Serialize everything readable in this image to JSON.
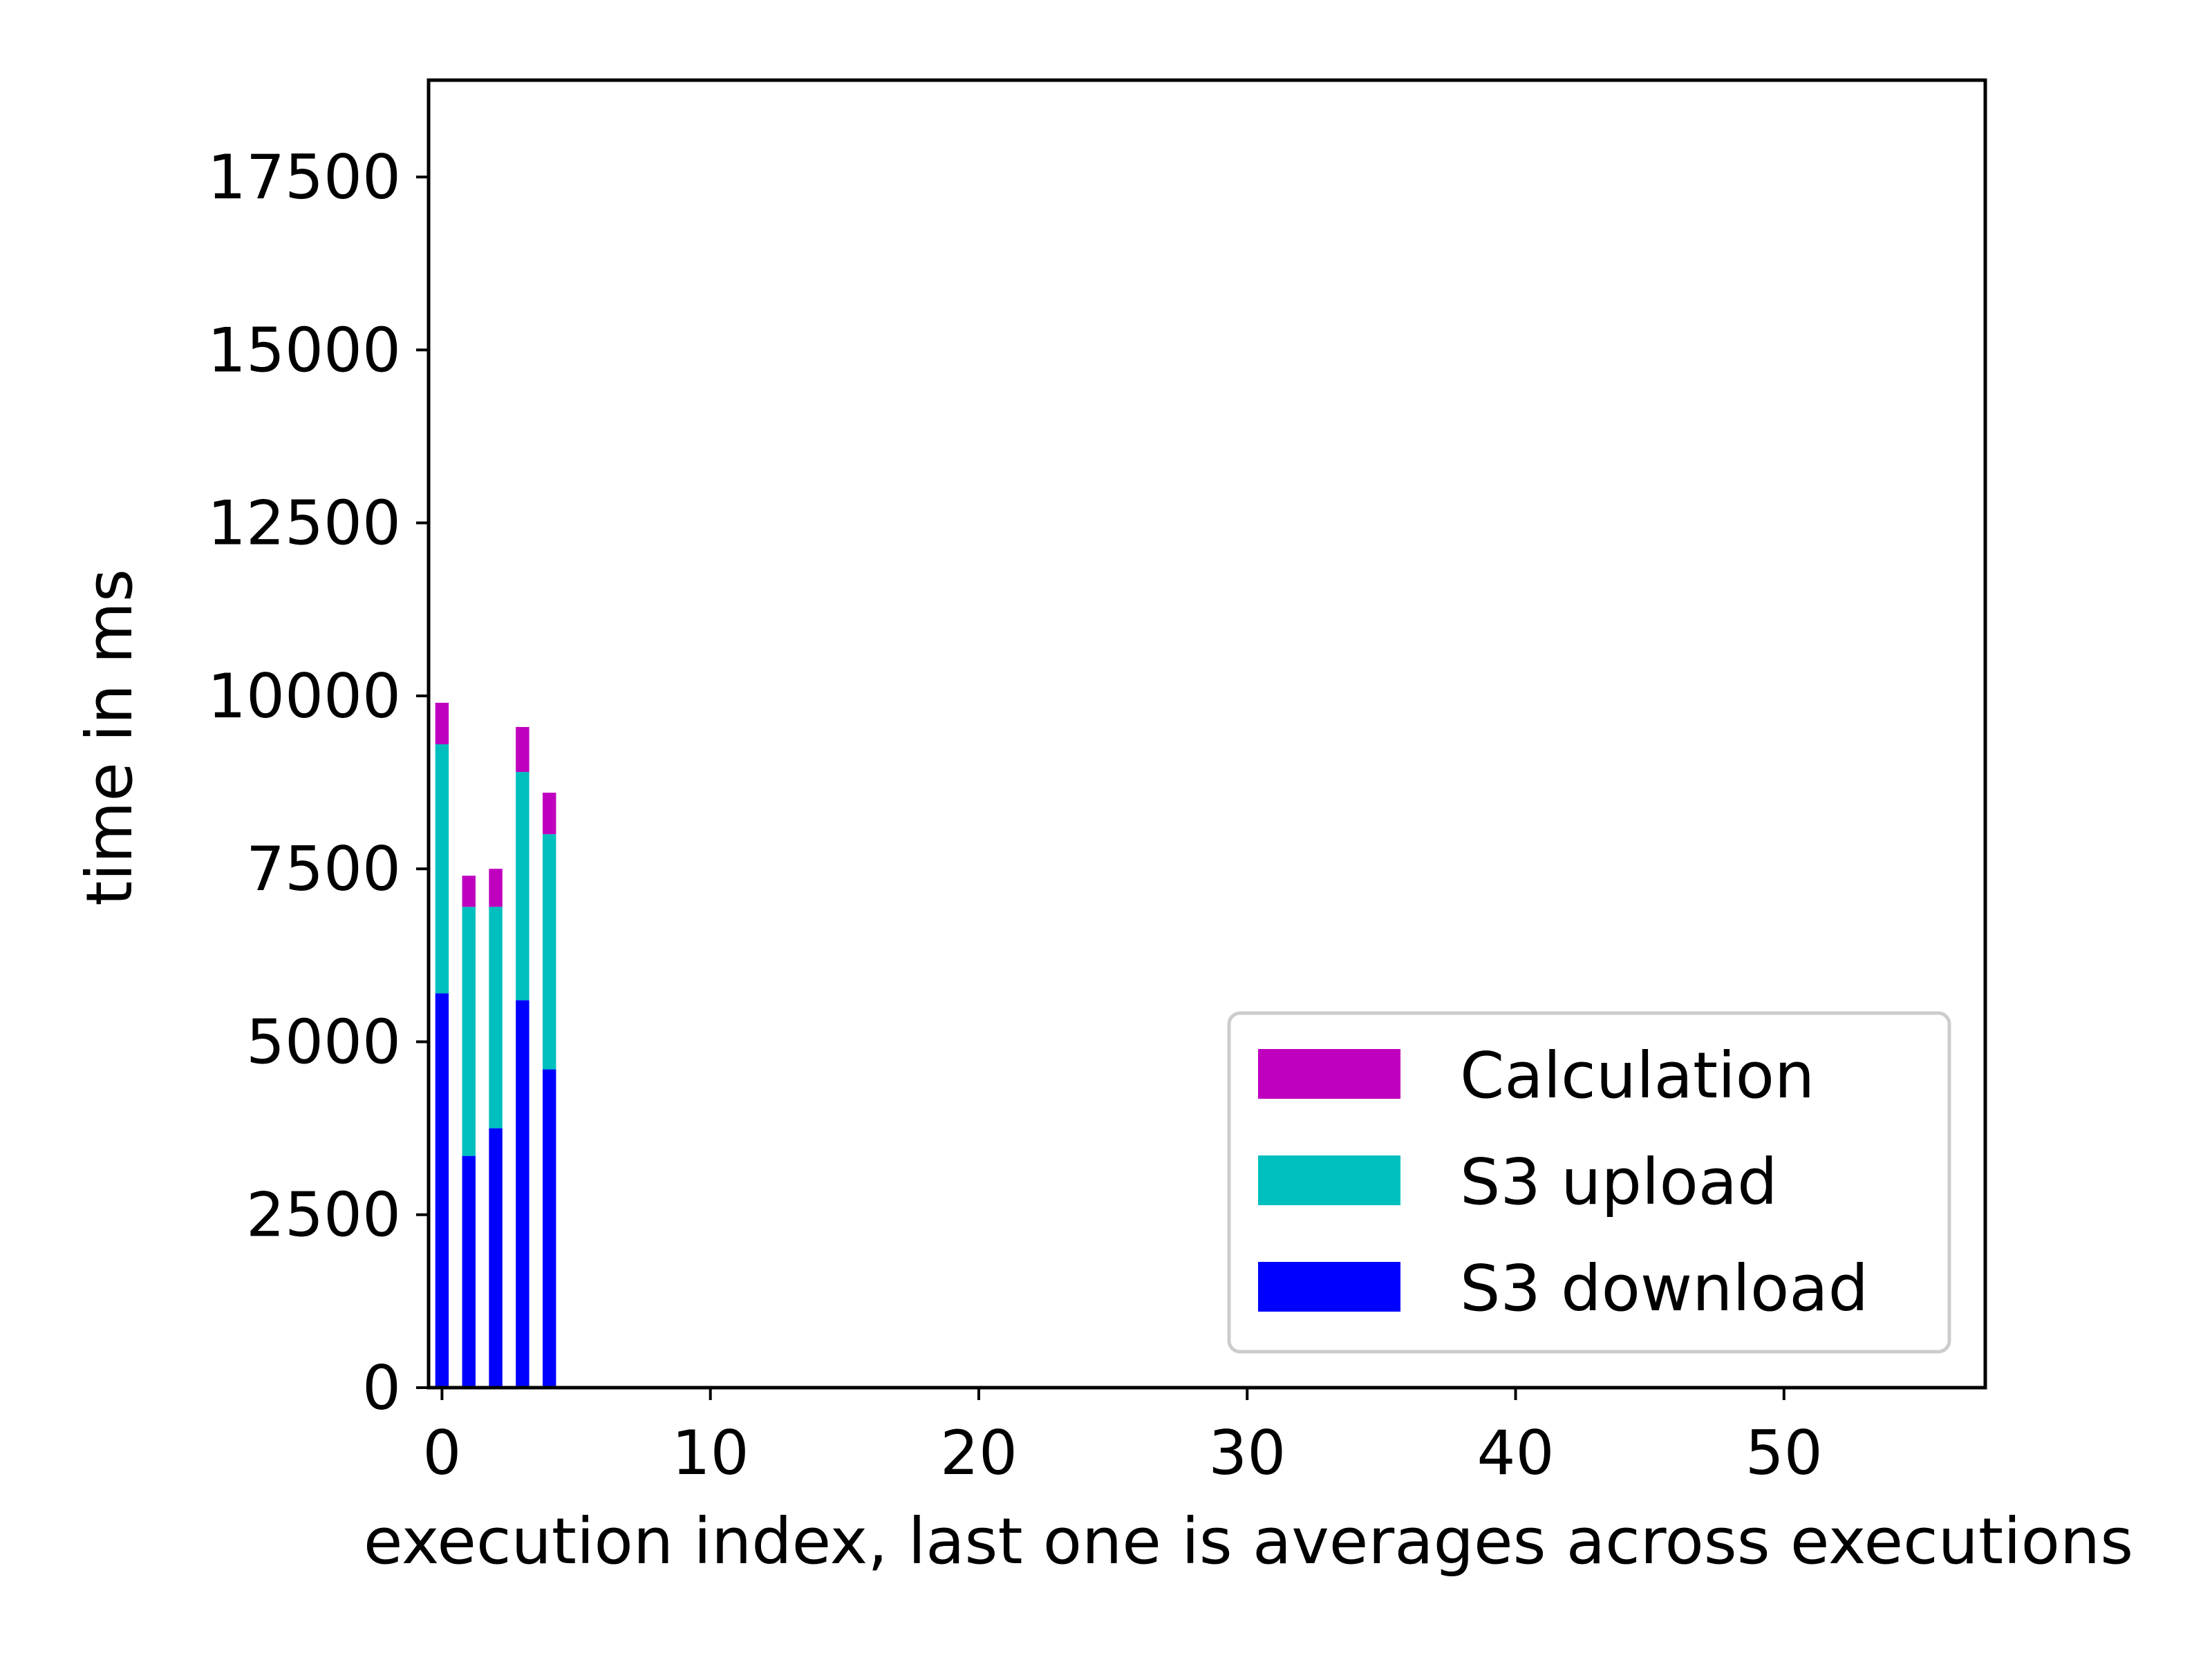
{
  "chart_data": {
    "type": "bar",
    "stacked": true,
    "title": "",
    "xlabel": "execution index, last one is averages across executions",
    "ylabel": "time in ms",
    "xlim": [
      -0.5,
      57.5
    ],
    "ylim": [
      0,
      18900
    ],
    "x_ticks": [
      0,
      10,
      20,
      30,
      40,
      50
    ],
    "y_ticks": [
      0,
      2500,
      5000,
      7500,
      10000,
      12500,
      15000,
      17500
    ],
    "x": [
      0,
      1,
      2,
      3,
      4
    ],
    "series": [
      {
        "name": "S3 download",
        "color": "#0000ff",
        "values": [
          5700,
          3350,
          3750,
          5600,
          4600
        ]
      },
      {
        "name": "S3 upload",
        "color": "#00bfbf",
        "values": [
          3600,
          3600,
          3200,
          3300,
          3400
        ]
      },
      {
        "name": "Calculation",
        "color": "#bf00bf",
        "values": [
          600,
          450,
          550,
          650,
          600
        ]
      }
    ],
    "legend": {
      "position": "lower-right",
      "order": [
        "Calculation",
        "S3 upload",
        "S3 download"
      ]
    },
    "grid": false
  }
}
